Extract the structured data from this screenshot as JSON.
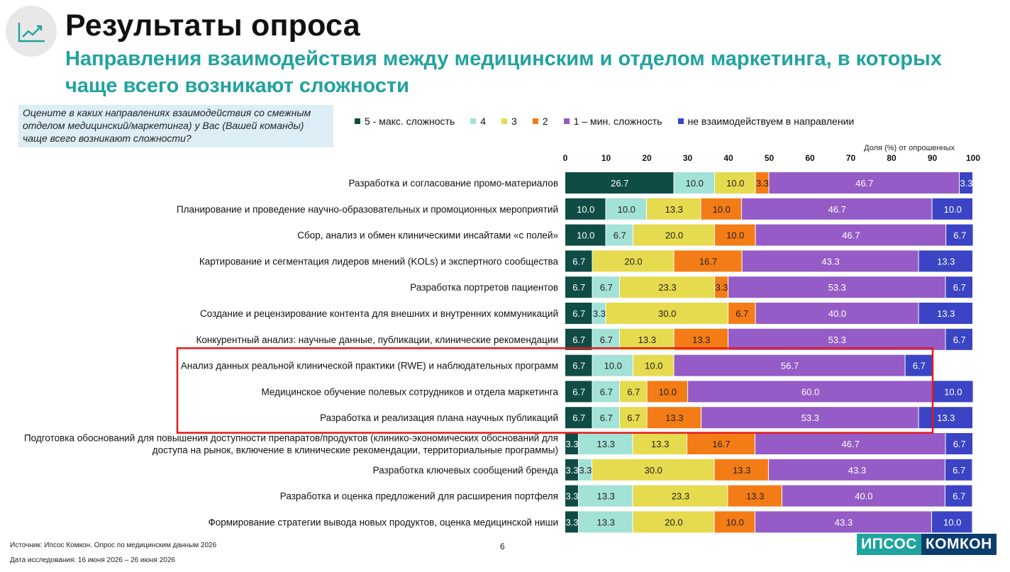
{
  "header": {
    "title": "Результаты опроса",
    "subtitle": "Направления взаимодействия между медицинским и отделом маркетинга, в которых чаще всего возникают сложности",
    "logo_icon": "trend-up-icon"
  },
  "question": "Оцените в каких направлениях взаимодействия со смежным отделом медицинский/маркетинга) у Вас (Вашей команды) чаще всего возникают сложности?",
  "footer": {
    "source": "Источник: Ипсос Комкон. Опрос по медицинским данным 2026",
    "dates": "Дата исследования: 16 июня 2026 – 26 июня 2026",
    "page": "6",
    "brand_left": "ИПСОС",
    "brand_right": "КОМКОН"
  },
  "chart_data": {
    "type": "bar",
    "orientation": "horizontal",
    "stacked": true,
    "xlabel": "Доля (%) от опрошенных",
    "xlim": [
      0,
      100
    ],
    "xticks": [
      0,
      10,
      20,
      30,
      40,
      50,
      60,
      70,
      80,
      90,
      100
    ],
    "legend_position": "top",
    "series": [
      {
        "name": "5 - макс. сложность",
        "color": "#0f4c45",
        "text_color": "#ffffff",
        "values": [
          26.7,
          10.0,
          10.0,
          6.7,
          6.7,
          6.7,
          6.7,
          6.7,
          6.7,
          6.7,
          3.3,
          3.3,
          3.3,
          3.3
        ]
      },
      {
        "name": "4",
        "color": "#a3e2d6",
        "text_color": "#222222",
        "values": [
          10.0,
          10.0,
          6.7,
          0,
          6.7,
          3.3,
          6.7,
          10.0,
          6.7,
          6.7,
          13.3,
          3.3,
          13.3,
          13.3
        ]
      },
      {
        "name": "3",
        "color": "#e6da4e",
        "text_color": "#222222",
        "values": [
          10.0,
          13.3,
          20.0,
          20.0,
          23.3,
          30.0,
          13.3,
          10.0,
          6.7,
          6.7,
          13.3,
          30.0,
          23.3,
          20.0
        ]
      },
      {
        "name": "2",
        "color": "#f47c16",
        "text_color": "#222222",
        "values": [
          3.3,
          10.0,
          10.0,
          16.7,
          3.3,
          6.7,
          13.3,
          0,
          10.0,
          13.3,
          16.7,
          13.3,
          13.3,
          10.0
        ]
      },
      {
        "name": "1 – мин. сложность",
        "color": "#955bc6",
        "text_color": "#ffffff",
        "values": [
          46.7,
          46.7,
          46.7,
          43.3,
          53.3,
          40.0,
          53.3,
          56.7,
          60.0,
          53.3,
          46.7,
          43.3,
          40.0,
          43.3
        ]
      },
      {
        "name": "не взаимодействуем в направлении",
        "color": "#3a44c4",
        "text_color": "#ffffff",
        "values": [
          3.3,
          10.0,
          6.7,
          13.3,
          6.7,
          13.3,
          6.7,
          6.7,
          10.0,
          13.3,
          6.7,
          6.7,
          6.7,
          10.0
        ]
      }
    ],
    "categories": [
      [
        "Разработка и согласование промо-материалов"
      ],
      [
        "Планирование и проведение научно-образовательных и промоционных мероприятий"
      ],
      [
        "Сбор, анализ и обмен клиническими инсайтами «с полей»"
      ],
      [
        "Картирование и сегментация лидеров мнений (KOLs) и экспертного сообщества"
      ],
      [
        "Разработка портретов пациентов"
      ],
      [
        "Создание и рецензирование контента для внешних и внутренних коммуникаций"
      ],
      [
        "Конкурентный анализ: научные данные, публикации, клинические рекомендации"
      ],
      [
        "Анализ данных реальной клинической практики (RWE) и наблюдательных программ"
      ],
      [
        "Медицинское обучение полевых сотрудников и отдела маркетинга"
      ],
      [
        "Разработка и реализация плана научных публикаций"
      ],
      [
        "Подготовка обоснований для повышения доступности препаратов/продуктов (клинико-экономических обоснований для",
        "доступа на рынок, включение в клинические рекомендации, территориальные программы)"
      ],
      [
        "Разработка ключевых сообщений бренда"
      ],
      [
        "Разработка и оценка предложений для расширения портфеля"
      ],
      [
        "Формирование стратегии вывода новых продуктов, оценка медицинской ниши"
      ]
    ],
    "highlight_rows": [
      7,
      9
    ],
    "highlight_color": "#e3191b"
  }
}
